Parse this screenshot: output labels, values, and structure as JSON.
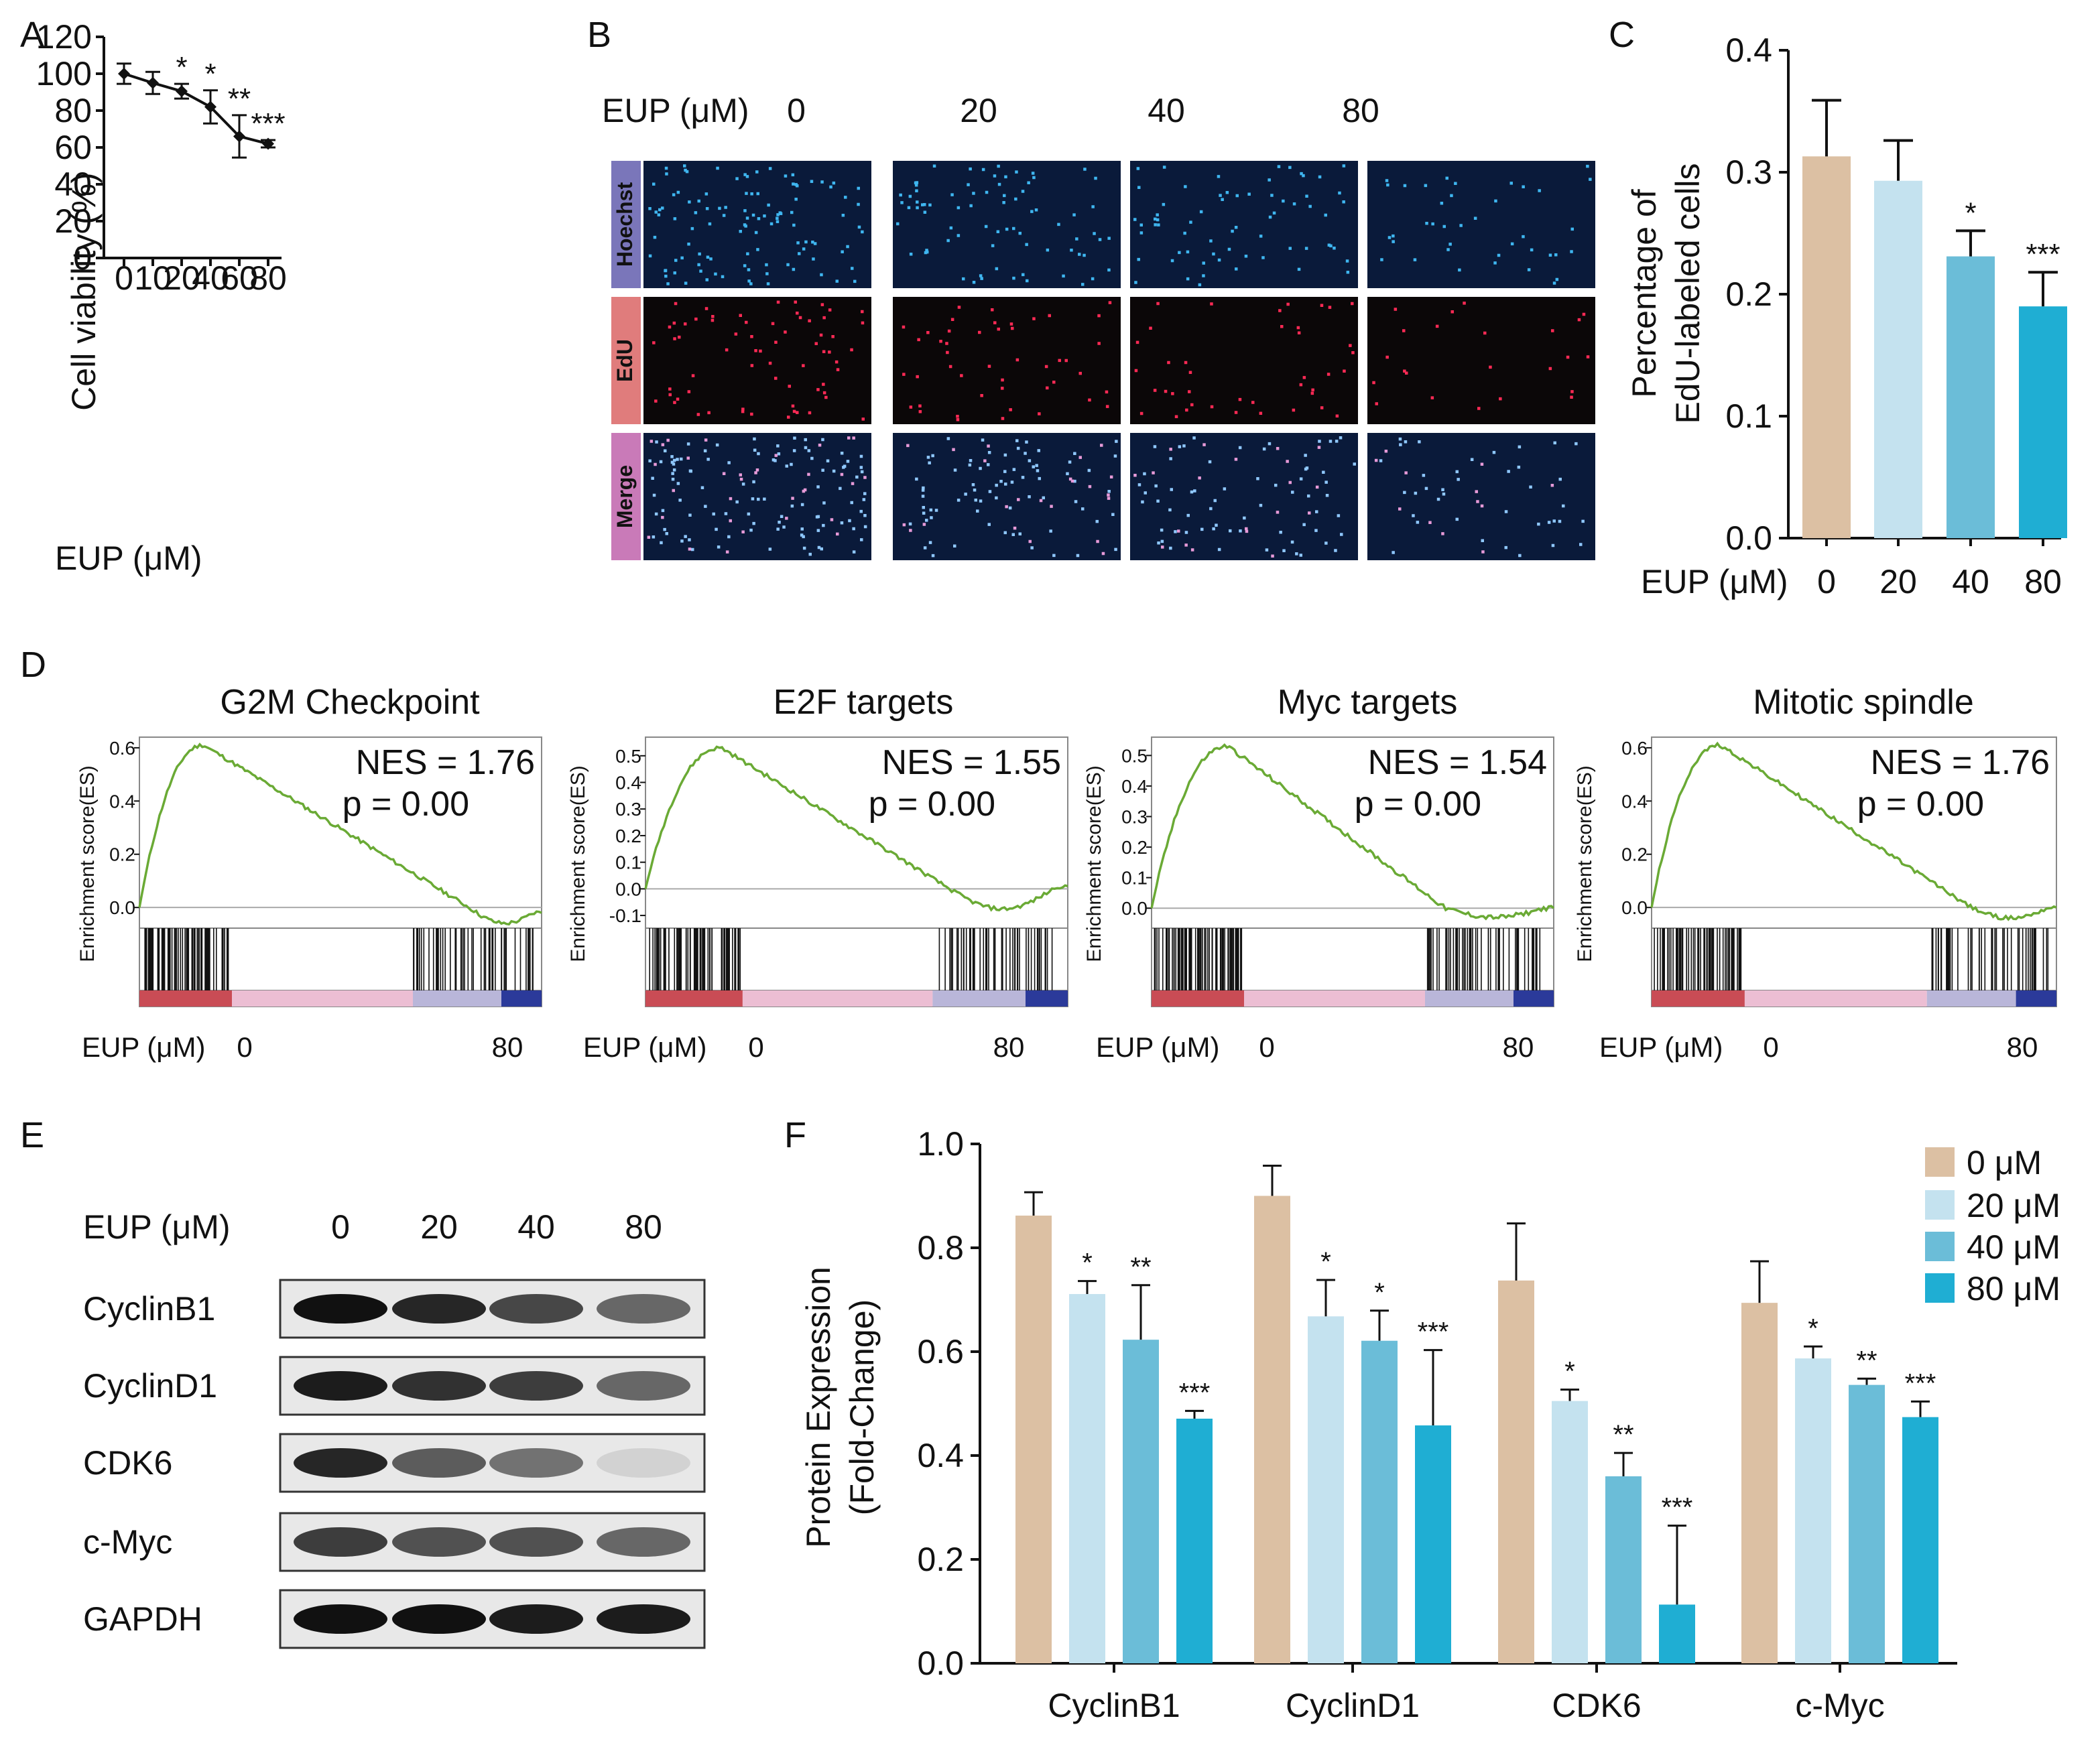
{
  "panel_letters": [
    "A",
    "B",
    "C",
    "D",
    "E",
    "F"
  ],
  "chart_data": [
    {
      "id": "A",
      "type": "line",
      "ylabel": "Cell viability (%)",
      "xlabel_prefix": "EUP (μM)",
      "x": [
        0,
        10,
        20,
        40,
        60,
        80
      ],
      "y": [
        100,
        95,
        90.5,
        82,
        66,
        62
      ],
      "err": [
        5.5,
        6,
        4,
        9,
        11.5,
        2
      ],
      "sig": [
        "",
        "",
        "*",
        "*",
        "**",
        "***"
      ],
      "ylim": [
        0,
        120
      ],
      "yticks": [
        0,
        20,
        40,
        60,
        80,
        100,
        120
      ]
    },
    {
      "id": "C",
      "type": "bar",
      "ylabel_lines": [
        "Percentage of",
        "EdU-labeled cells"
      ],
      "xlabel_prefix": "EUP (μM)",
      "categories": [
        "0",
        "20",
        "40",
        "80"
      ],
      "values": [
        0.313,
        0.293,
        0.231,
        0.19
      ],
      "err": [
        0.046,
        0.033,
        0.021,
        0.028
      ],
      "sig": [
        "",
        "",
        "*",
        "***"
      ],
      "colors": [
        "#dcc0a3",
        "#c4e2ef",
        "#6bbdd8",
        "#1faed3"
      ],
      "ylim": [
        0,
        0.4
      ],
      "yticks": [
        "0.0",
        "0.1",
        "0.2",
        "0.3",
        "0.4"
      ]
    },
    {
      "id": "D",
      "type": "line",
      "ylabel": "Enrichment score(ES)",
      "xlabel_prefix": "EUP (μM)",
      "x_left_label": "0",
      "x_right_label": "80",
      "line_color": "#6aaa35",
      "plots": [
        {
          "title": "G2M Checkpoint",
          "nes": "NES = 1.76",
          "p": "p = 0.00",
          "ymin": -0.06,
          "ymax": 0.64,
          "yticks": [
            "0.0",
            "0.2",
            "0.4",
            "0.6"
          ],
          "peak": 0.61,
          "peak_at": 0.16,
          "cross_at": 0.82,
          "end": -0.02,
          "min": -0.05
        },
        {
          "title": "E2F targets",
          "nes": "NES = 1.55",
          "p": "p = 0.00",
          "ymin": -0.13,
          "ymax": 0.57,
          "yticks": [
            "-0.1",
            "0.0",
            "0.1",
            "0.2",
            "0.3",
            "0.4",
            "0.5"
          ],
          "peak": 0.53,
          "peak_at": 0.18,
          "cross_at": 0.72,
          "end": 0.01,
          "min": -0.08
        },
        {
          "title": "Myc targets",
          "nes": "NES = 1.54",
          "p": "p = 0.00",
          "ymin": -0.05,
          "ymax": 0.56,
          "yticks": [
            "0.0",
            "0.1",
            "0.2",
            "0.3",
            "0.4",
            "0.5"
          ],
          "peak": 0.53,
          "peak_at": 0.19,
          "cross_at": 0.73,
          "end": 0.0,
          "min": -0.03
        },
        {
          "title": "Mitotic spindle",
          "nes": "NES = 1.76",
          "p": "p = 0.00",
          "ymin": -0.06,
          "ymax": 0.64,
          "yticks": [
            "0.0",
            "0.2",
            "0.4",
            "0.6"
          ],
          "peak": 0.61,
          "peak_at": 0.17,
          "cross_at": 0.79,
          "end": 0.0,
          "min": -0.04
        }
      ]
    },
    {
      "id": "F",
      "type": "bar",
      "ylabel_lines": [
        "Protein Expression",
        "(Fold-Change)"
      ],
      "categories": [
        "CyclinB1",
        "CyclinD1",
        "CDK6",
        "c-Myc"
      ],
      "ylim": [
        0,
        1.0
      ],
      "yticks": [
        "0.0",
        "0.2",
        "0.4",
        "0.6",
        "0.8",
        "1.0"
      ],
      "series": [
        {
          "name": "0   μM",
          "color": "#dcc0a3",
          "values": [
            0.862,
            0.9,
            0.737,
            0.694
          ],
          "err": [
            0.045,
            0.058,
            0.11,
            0.08
          ],
          "sig": [
            "",
            "",
            "",
            ""
          ]
        },
        {
          "name": "20 μM",
          "color": "#c4e2ef",
          "values": [
            0.711,
            0.668,
            0.505,
            0.587
          ],
          "err": [
            0.025,
            0.07,
            0.022,
            0.023
          ],
          "sig": [
            "*",
            "*",
            "*",
            "*"
          ]
        },
        {
          "name": "40 μM",
          "color": "#6bbdd8",
          "values": [
            0.623,
            0.621,
            0.36,
            0.536
          ],
          "err": [
            0.105,
            0.058,
            0.045,
            0.012
          ],
          "sig": [
            "**",
            "*",
            "**",
            "**"
          ]
        },
        {
          "name": "80 μM",
          "color": "#1faed3",
          "values": [
            0.471,
            0.458,
            0.113,
            0.474
          ],
          "err": [
            0.015,
            0.145,
            0.152,
            0.03
          ],
          "sig": [
            "***",
            "***",
            "***",
            "***"
          ]
        }
      ]
    }
  ],
  "panel_B": {
    "header_label": "EUP (μM)",
    "columns": [
      "0",
      "20",
      "40",
      "80"
    ],
    "rows": [
      {
        "label": "Hoechst",
        "color": "#7a76ba"
      },
      {
        "label": "EdU",
        "color": "#e07c7c"
      },
      {
        "label": "Merge",
        "color": "#c97ab8"
      }
    ]
  },
  "panel_E": {
    "header_label": "EUP (μM)",
    "columns": [
      "0",
      "20",
      "40",
      "80"
    ],
    "proteins": [
      "CyclinB1",
      "CyclinD1",
      "CDK6",
      "c-Myc",
      "GAPDH"
    ],
    "band_intensity": [
      [
        1.0,
        0.9,
        0.75,
        0.6
      ],
      [
        0.95,
        0.85,
        0.8,
        0.6
      ],
      [
        0.9,
        0.65,
        0.55,
        0.1
      ],
      [
        0.8,
        0.7,
        0.7,
        0.6
      ],
      [
        1.0,
        1.0,
        0.95,
        0.95
      ]
    ]
  }
}
